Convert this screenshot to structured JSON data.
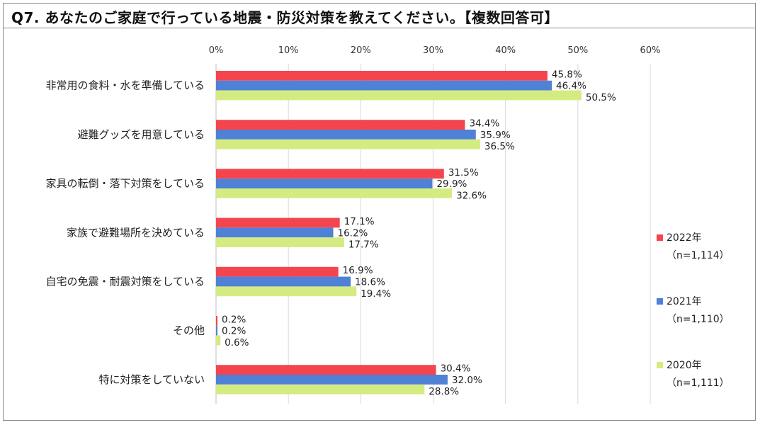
{
  "title": "Q7. あなたのご家庭で行っている地震・防災対策を教えてください。【複数回答可】",
  "chart_data": {
    "type": "bar",
    "orientation": "horizontal",
    "title": "Q7. あなたのご家庭で行っている地震・防災対策を教えてください。【複数回答可】",
    "xlim": [
      0,
      60
    ],
    "ticks": [
      0,
      10,
      20,
      30,
      40,
      50,
      60
    ],
    "tick_labels": [
      "0%",
      "10%",
      "20%",
      "30%",
      "40%",
      "50%",
      "60%"
    ],
    "grid": true,
    "legend_position": "right",
    "categories": [
      "非常用の食料・水を準備している",
      "避難グッズを用意している",
      "家具の転倒・落下対策をしている",
      "家族で避難場所を決めている",
      "自宅の免震・耐震対策をしている",
      "その他",
      "特に対策をしていない"
    ],
    "series": [
      {
        "name": "2022年",
        "n": "（n=1,114）",
        "color": "#f4454f",
        "values": [
          45.8,
          34.4,
          31.5,
          17.1,
          16.9,
          0.2,
          30.4
        ],
        "labels": [
          "45.8%",
          "34.4%",
          "31.5%",
          "17.1%",
          "16.9%",
          "0.2%",
          "30.4%"
        ]
      },
      {
        "name": "2021年",
        "n": "（n=1,110）",
        "color": "#4f81d6",
        "values": [
          46.4,
          35.9,
          29.9,
          16.2,
          18.6,
          0.2,
          32.0
        ],
        "labels": [
          "46.4%",
          "35.9%",
          "29.9%",
          "16.2%",
          "18.6%",
          "0.2%",
          "32.0%"
        ]
      },
      {
        "name": "2020年",
        "n": "（n=1,111）",
        "color": "#d4eb82",
        "values": [
          50.5,
          36.5,
          32.6,
          17.7,
          19.4,
          0.6,
          28.8
        ],
        "labels": [
          "50.5%",
          "36.5%",
          "32.6%",
          "17.7%",
          "19.4%",
          "0.6%",
          "28.8%"
        ]
      }
    ]
  }
}
